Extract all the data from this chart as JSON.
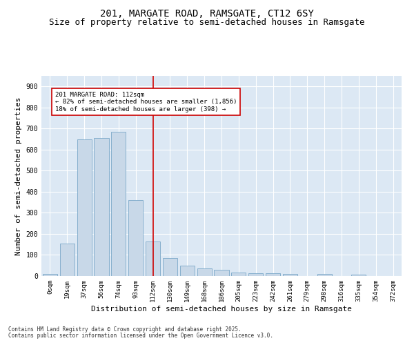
{
  "title1": "201, MARGATE ROAD, RAMSGATE, CT12 6SY",
  "title2": "Size of property relative to semi-detached houses in Ramsgate",
  "xlabel": "Distribution of semi-detached houses by size in Ramsgate",
  "ylabel": "Number of semi-detached properties",
  "categories": [
    "0sqm",
    "19sqm",
    "37sqm",
    "56sqm",
    "74sqm",
    "93sqm",
    "112sqm",
    "130sqm",
    "149sqm",
    "168sqm",
    "186sqm",
    "205sqm",
    "223sqm",
    "242sqm",
    "261sqm",
    "279sqm",
    "298sqm",
    "316sqm",
    "335sqm",
    "354sqm",
    "372sqm"
  ],
  "bar_values": [
    10,
    155,
    650,
    655,
    685,
    360,
    165,
    85,
    48,
    35,
    28,
    15,
    13,
    13,
    10,
    0,
    10,
    0,
    5,
    0,
    0
  ],
  "bar_color": "#c8d8e8",
  "bar_edge_color": "#7aa8c8",
  "vline_x_idx": 6,
  "vline_color": "#cc0000",
  "annotation_text": "201 MARGATE ROAD: 112sqm\n← 82% of semi-detached houses are smaller (1,856)\n18% of semi-detached houses are larger (398) →",
  "annotation_box_color": "#ffffff",
  "annotation_box_edge": "#cc0000",
  "ylim": [
    0,
    950
  ],
  "yticks": [
    0,
    100,
    200,
    300,
    400,
    500,
    600,
    700,
    800,
    900
  ],
  "bg_color": "#dce8f4",
  "footer1": "Contains HM Land Registry data © Crown copyright and database right 2025.",
  "footer2": "Contains public sector information licensed under the Open Government Licence v3.0.",
  "title1_fontsize": 10,
  "title2_fontsize": 9,
  "tick_fontsize": 6.5,
  "label_fontsize": 8,
  "annotation_fontsize": 6.5,
  "footer_fontsize": 5.5
}
